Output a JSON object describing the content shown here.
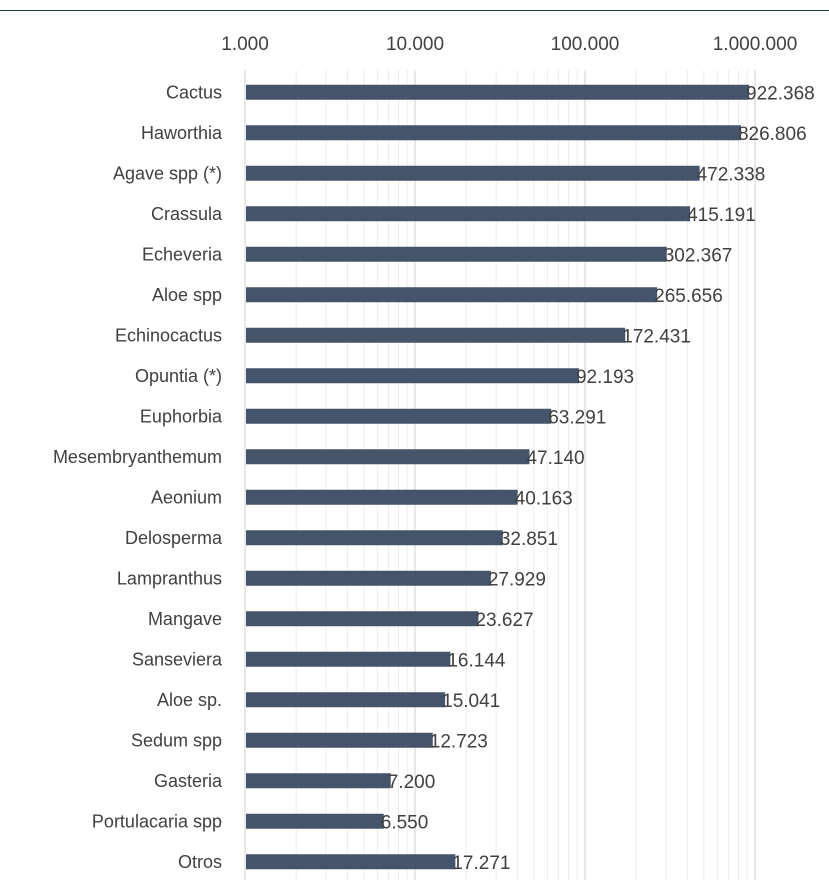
{
  "chart_data": {
    "type": "bar",
    "orientation": "horizontal",
    "x_scale": "log",
    "xlim": [
      1000,
      1000000
    ],
    "x_ticks": [
      1000,
      10000,
      100000,
      1000000
    ],
    "x_tick_labels": [
      "1.000",
      "10.000",
      "100.000",
      "1.000.000"
    ],
    "x_axis_position": "top",
    "grid": true,
    "bar_color": "#44546a",
    "categories": [
      "Cactus",
      "Haworthia",
      "Agave spp (*)",
      "Crassula",
      "Echeveria",
      "Aloe spp",
      "Echinocactus",
      "Opuntia (*)",
      "Euphorbia",
      "Mesembryanthemum",
      "Aeonium",
      "Delosperma",
      "Lampranthus",
      "Mangave",
      "Sanseviera",
      "Aloe sp.",
      "Sedum spp",
      "Gasteria",
      "Portulacaria spp",
      "Otros"
    ],
    "values": [
      922368,
      826806,
      472338,
      415191,
      302367,
      265656,
      172431,
      92193,
      63291,
      47140,
      40163,
      32851,
      27929,
      23627,
      16144,
      15041,
      12723,
      7200,
      6550,
      17271
    ],
    "value_labels": [
      "922.368",
      "826.806",
      "472.338",
      "415.191",
      "302.367",
      "265.656",
      "172.431",
      "92.193",
      "63.291",
      "47.140",
      "40.163",
      "32.851",
      "27.929",
      "23.627",
      "16.144",
      "15.041",
      "12.723",
      "7.200",
      "6.550",
      "17.271"
    ]
  }
}
